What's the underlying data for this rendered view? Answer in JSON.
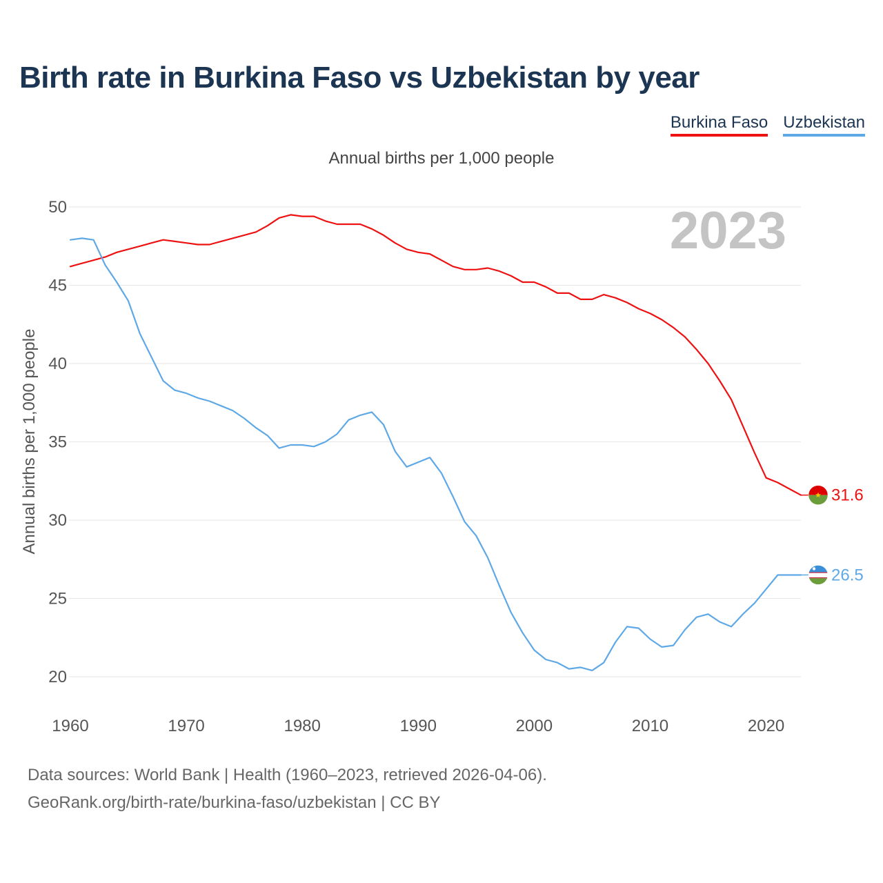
{
  "header": {
    "title": "Birth rate in Burkina Faso vs Uzbekistan by year",
    "subtitle": "Annual births per 1,000 people"
  },
  "legend": [
    {
      "label": "Burkina Faso",
      "color": "#ee1111"
    },
    {
      "label": "Uzbekistan",
      "color": "#5fa8e6"
    }
  ],
  "chart_data": {
    "type": "line",
    "ylabel": "Annual births per 1,000 people",
    "year_label": "2023",
    "xlim": [
      1960,
      2023
    ],
    "ylim": [
      20,
      50
    ],
    "x_ticks": [
      1960,
      1970,
      1980,
      1990,
      2000,
      2010,
      2020
    ],
    "y_ticks": [
      20,
      25,
      30,
      35,
      40,
      45,
      50
    ],
    "grid": true,
    "legend_position": "top-right",
    "series": [
      {
        "name": "Burkina Faso",
        "color": "#ee1111",
        "flag": "burkina-faso-flag-icon",
        "last_label": "31.6",
        "x": [
          1960,
          1961,
          1962,
          1963,
          1964,
          1965,
          1966,
          1967,
          1968,
          1969,
          1970,
          1971,
          1972,
          1973,
          1974,
          1975,
          1976,
          1977,
          1978,
          1979,
          1980,
          1981,
          1982,
          1983,
          1984,
          1985,
          1986,
          1987,
          1988,
          1989,
          1990,
          1991,
          1992,
          1993,
          1994,
          1995,
          1996,
          1997,
          1998,
          1999,
          2000,
          2001,
          2002,
          2003,
          2004,
          2005,
          2006,
          2007,
          2008,
          2009,
          2010,
          2011,
          2012,
          2013,
          2014,
          2015,
          2016,
          2017,
          2018,
          2019,
          2020,
          2021,
          2022,
          2023
        ],
        "values": [
          46.2,
          46.4,
          46.6,
          46.8,
          47.1,
          47.3,
          47.5,
          47.7,
          47.9,
          47.8,
          47.7,
          47.6,
          47.6,
          47.8,
          48.0,
          48.2,
          48.4,
          48.8,
          49.3,
          49.5,
          49.4,
          49.4,
          49.1,
          48.9,
          48.9,
          48.9,
          48.6,
          48.2,
          47.7,
          47.3,
          47.1,
          47.0,
          46.6,
          46.2,
          46.0,
          46.0,
          46.1,
          45.9,
          45.6,
          45.2,
          45.2,
          44.9,
          44.5,
          44.5,
          44.1,
          44.1,
          44.4,
          44.2,
          43.9,
          43.5,
          43.2,
          42.8,
          42.3,
          41.7,
          40.9,
          40.0,
          38.9,
          37.7,
          36.0,
          34.3,
          32.7,
          32.4,
          32.0,
          31.6
        ]
      },
      {
        "name": "Uzbekistan",
        "color": "#5fa8e6",
        "flag": "uzbekistan-flag-icon",
        "last_label": "26.5",
        "x": [
          1960,
          1961,
          1962,
          1963,
          1964,
          1965,
          1966,
          1967,
          1968,
          1969,
          1970,
          1971,
          1972,
          1973,
          1974,
          1975,
          1976,
          1977,
          1978,
          1979,
          1980,
          1981,
          1982,
          1983,
          1984,
          1985,
          1986,
          1987,
          1988,
          1989,
          1990,
          1991,
          1992,
          1993,
          1994,
          1995,
          1996,
          1997,
          1998,
          1999,
          2000,
          2001,
          2002,
          2003,
          2004,
          2005,
          2006,
          2007,
          2008,
          2009,
          2010,
          2011,
          2012,
          2013,
          2014,
          2015,
          2016,
          2017,
          2018,
          2019,
          2020,
          2021,
          2022,
          2023
        ],
        "values": [
          47.9,
          48.0,
          47.9,
          46.3,
          45.2,
          44.0,
          41.9,
          40.4,
          38.9,
          38.3,
          38.1,
          37.8,
          37.6,
          37.3,
          37.0,
          36.5,
          35.9,
          35.4,
          34.6,
          34.8,
          34.8,
          34.7,
          35.0,
          35.5,
          36.4,
          36.7,
          36.9,
          36.1,
          34.4,
          33.4,
          33.7,
          34.0,
          33.0,
          31.5,
          29.9,
          29.0,
          27.6,
          25.8,
          24.1,
          22.8,
          21.7,
          21.1,
          20.9,
          20.5,
          20.6,
          20.4,
          20.9,
          22.2,
          23.2,
          23.1,
          22.4,
          21.9,
          22.0,
          23.0,
          23.8,
          24.0,
          23.5,
          23.2,
          24.0,
          24.7,
          25.6,
          26.5,
          26.5,
          26.5
        ]
      }
    ]
  },
  "footer": {
    "line1": "Data sources: World Bank | Health (1960–2023, retrieved 2026-04-06).",
    "line2": "GeoRank.org/birth-rate/burkina-faso/uzbekistan | CC BY"
  }
}
